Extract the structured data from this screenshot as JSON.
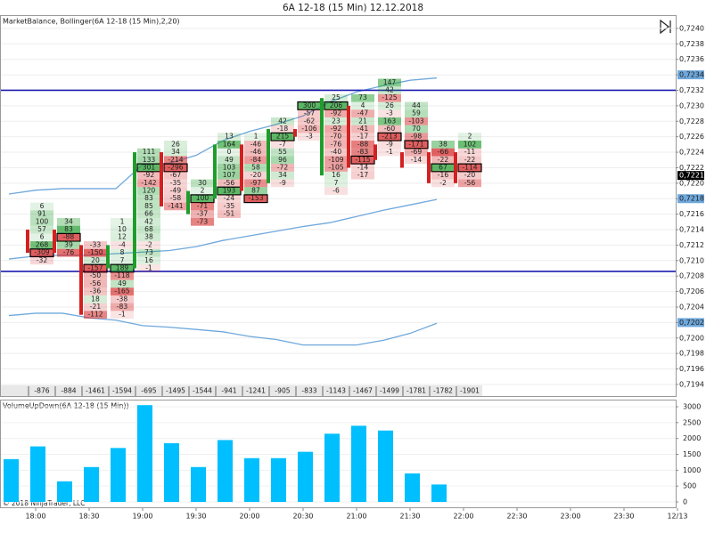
{
  "chart_data": [
    {
      "type": "footprint",
      "title": "6A 12-18 (15 Min)  12.12.2018",
      "label": "MarketBalance, Bollinger(6A 12-18 (15 Min),2,20)",
      "ylim": [
        0.71925,
        0.72416
      ],
      "yticks": [
        {
          "value": 0.724,
          "label": "0,7240"
        },
        {
          "value": 0.7238,
          "label": "0,7238"
        },
        {
          "value": 0.7236,
          "label": "0,7236"
        },
        {
          "value": 0.7234,
          "label": "0,7234"
        },
        {
          "value": 0.7232,
          "label": "0,7232"
        },
        {
          "value": 0.723,
          "label": "0,7230"
        },
        {
          "value": 0.7228,
          "label": "0,7228"
        },
        {
          "value": 0.7226,
          "label": "0,7226"
        },
        {
          "value": 0.7224,
          "label": "0,7224"
        },
        {
          "value": 0.7222,
          "label": "0,7222"
        },
        {
          "value": 0.722,
          "label": "0,7220"
        },
        {
          "value": 0.7218,
          "label": "0,7218"
        },
        {
          "value": 0.7216,
          "label": "0,7216"
        },
        {
          "value": 0.7214,
          "label": "0,7214"
        },
        {
          "value": 0.7212,
          "label": "0,7212"
        },
        {
          "value": 0.721,
          "label": "0,7210"
        },
        {
          "value": 0.7208,
          "label": "0,7208"
        },
        {
          "value": 0.7206,
          "label": "0,7206"
        },
        {
          "value": 0.7204,
          "label": "0,7204"
        },
        {
          "value": 0.7202,
          "label": "0,7202"
        },
        {
          "value": 0.72,
          "label": "0,7200"
        },
        {
          "value": 0.7198,
          "label": "0,7198"
        },
        {
          "value": 0.7196,
          "label": "0,7196"
        },
        {
          "value": 0.7194,
          "label": "0,7194"
        }
      ],
      "grid": true,
      "tick_size": 0.0001,
      "positive_color": "#1f9d2b",
      "negative_color": "#d42020",
      "bars": [
        {
          "open": 0.7214,
          "close": 0.7211,
          "top_price": 0.7217,
          "deltas": [
            6,
            91,
            100,
            57,
            6,
            268,
            -309,
            -32
          ],
          "delta_total": -876
        },
        {
          "open": 0.7214,
          "close": 0.7211,
          "top_price": 0.7215,
          "deltas": [
            34,
            83,
            -88,
            39,
            -76
          ],
          "delta_total": -884
        },
        {
          "open": 0.7212,
          "close": 0.7203,
          "top_price": 0.7212,
          "deltas": [
            -33,
            -150,
            20,
            -157,
            -50,
            -56,
            -36,
            18,
            -21,
            -112
          ],
          "delta_total": -1461
        },
        {
          "open": 0.7209,
          "close": 0.7212,
          "top_price": 0.7215,
          "deltas": [
            1,
            10,
            12,
            -4,
            8,
            7,
            189,
            -118,
            49,
            -165,
            -38,
            -83,
            -1
          ],
          "delta_total": -1594
        },
        {
          "open": 0.7209,
          "close": 0.7224,
          "top_price": 0.7224,
          "deltas": [
            111,
            133,
            301,
            -92,
            -142,
            120,
            83,
            85,
            66,
            42,
            68,
            38,
            -2,
            73,
            16,
            -1
          ],
          "delta_total": -695
        },
        {
          "open": 0.7224,
          "close": 0.7217,
          "top_price": 0.7225,
          "deltas": [
            26,
            34,
            -214,
            -296,
            -67,
            -35,
            -49,
            -58,
            -141
          ],
          "delta_total": -1495
        },
        {
          "open": 0.7216,
          "close": 0.7219,
          "top_price": 0.722,
          "deltas": [
            30,
            2,
            100,
            -71,
            -37,
            -73
          ],
          "delta_total": -1544
        },
        {
          "open": 0.7218,
          "close": 0.7225,
          "top_price": 0.7226,
          "deltas": [
            13,
            164,
            0,
            49,
            103,
            107,
            -56,
            193,
            -24,
            -35,
            -51
          ],
          "delta_total": -941
        },
        {
          "open": 0.7225,
          "close": 0.7219,
          "top_price": 0.7226,
          "deltas": [
            1,
            -46,
            -46,
            -84,
            58,
            -20,
            -97,
            87,
            -153
          ],
          "delta_total": -1241
        },
        {
          "open": 0.722,
          "close": 0.7227,
          "top_price": 0.7228,
          "deltas": [
            42,
            -18,
            215,
            -7,
            55,
            96,
            -72,
            34,
            -9
          ],
          "delta_total": -905
        },
        {
          "open": 0.7227,
          "close": 0.7226,
          "top_price": 0.723,
          "deltas": [
            300,
            -57,
            -62,
            -106,
            -3
          ],
          "delta_total": -833
        },
        {
          "open": 0.7221,
          "close": 0.7231,
          "top_price": 0.7231,
          "deltas": [
            25,
            206,
            -92,
            23,
            -92,
            -70,
            -76,
            -40,
            -109,
            -105,
            16,
            7,
            -6
          ],
          "delta_total": -1143
        },
        {
          "open": 0.723,
          "close": 0.7222,
          "top_price": 0.7231,
          "deltas": [
            73,
            4,
            -47,
            21,
            -41,
            -17,
            -88,
            -83,
            -115,
            -14,
            -17
          ],
          "delta_total": -1467
        },
        {
          "open": 0.7225,
          "close": 0.7223,
          "top_price": 0.7233,
          "deltas": [
            147,
            42,
            -125,
            26,
            -3,
            163,
            -60,
            -213,
            -9,
            -1
          ],
          "delta_total": -1499
        },
        {
          "open": 0.7224,
          "close": 0.7222,
          "top_price": 0.723,
          "deltas": [
            44,
            59,
            -103,
            70,
            -98,
            -171,
            -69,
            -14
          ],
          "delta_total": -1781
        },
        {
          "open": 0.7224,
          "close": 0.722,
          "top_price": 0.7225,
          "deltas": [
            38,
            -66,
            -22,
            67,
            -16,
            -2
          ],
          "delta_total": -1782
        },
        {
          "open": 0.7224,
          "close": 0.722,
          "top_price": 0.7226,
          "deltas": [
            2,
            102,
            -11,
            -22,
            -114,
            -20,
            -56
          ],
          "delta_total": -1901
        }
      ],
      "bands": {
        "color": "#6fa8dc",
        "upper": [
          0.72186,
          0.72191,
          0.72193,
          0.72193,
          0.72193,
          0.72224,
          0.72226,
          0.72236,
          0.72255,
          0.72267,
          0.72276,
          0.72287,
          0.72305,
          0.72318,
          0.72326,
          0.72333,
          0.72336
        ],
        "middle": [
          0.72102,
          0.72106,
          0.72107,
          0.72107,
          0.72109,
          0.72111,
          0.72113,
          0.72118,
          0.72126,
          0.72132,
          0.72138,
          0.72144,
          0.72149,
          0.72157,
          0.72165,
          0.72172,
          0.72179
        ],
        "lower": [
          0.72029,
          0.72032,
          0.72032,
          0.72026,
          0.72023,
          0.72016,
          0.72014,
          0.72011,
          0.72008,
          0.72002,
          0.71998,
          0.71991,
          0.71991,
          0.71991,
          0.71997,
          0.72006,
          0.72019
        ],
        "labels": [
          {
            "value": 0.7234,
            "label": "0,7234"
          },
          {
            "value": 0.7218,
            "label": "0,7218"
          },
          {
            "value": 0.7202,
            "label": "0,7202"
          }
        ]
      },
      "levels": {
        "color": "#1c1cb0",
        "values": [
          0.7232,
          0.72086
        ]
      },
      "last_price": {
        "value": 0.7221,
        "label": "0,7221"
      }
    },
    {
      "type": "bar",
      "label": "VolumeUpDown(6A 12-18 (15 Min))",
      "color": "#00bfff",
      "values": [
        1350,
        1750,
        650,
        1100,
        1700,
        3050,
        1850,
        1100,
        1950,
        1380,
        1380,
        1580,
        2150,
        2400,
        2250,
        900,
        550
      ],
      "ylim": [
        -168,
        3196
      ],
      "yticks": [
        0,
        500,
        1000,
        1500,
        2000,
        2500,
        3000
      ],
      "x_labels": [
        "18:00",
        "18:30",
        "19:00",
        "19:30",
        "20:00",
        "20:30",
        "21:00",
        "21:30",
        "22:00",
        "22:30",
        "23:00",
        "23:30",
        "12/13"
      ],
      "copyright": "© 2018 NinjaTrader, LLC"
    }
  ]
}
